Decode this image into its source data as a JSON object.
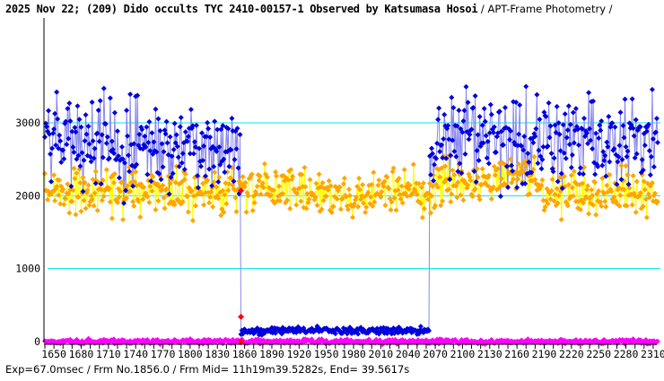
{
  "title": {
    "bold_text": "2025 Nov 22; (209) Dido occults TYC 2410-00157-1 Observed by Katsumasa Hosoi",
    "normal_text": " / APT-Frame Photometry /"
  },
  "footer": {
    "text": "Exp=67.0msec / Frm No.1856.0 / Frm Mid= 11h19m39.5282s,  End= 39.5617s"
  },
  "colors": {
    "target_marker": "#0000dd",
    "target_line": "#8888ee",
    "comparison_marker": "#ffa500",
    "comparison_line": "#ffff00",
    "background_marker": "#ff00ff",
    "event_marker": "#ff0000",
    "gridline": "#00e5ee",
    "axis": "#000000"
  },
  "chart_data": {
    "type": "scatter",
    "title": "2025 Nov 22; (209) Dido occults TYC 2410-00157-1 Observed by Katsumasa Hosoi / APT-Frame Photometry /",
    "xlabel": "",
    "ylabel": "",
    "xlim": [
      1639,
      2318
    ],
    "ylim": [
      -30,
      4400
    ],
    "x_ticks": [
      1650,
      1680,
      1710,
      1740,
      1770,
      1800,
      1830,
      1860,
      1890,
      1920,
      1950,
      1980,
      2010,
      2040,
      2070,
      2100,
      2130,
      2160,
      2190,
      2220,
      2250,
      2280,
      2310
    ],
    "y_ticks": [
      0,
      1000,
      2000,
      3000
    ],
    "gridlines_y": [
      1000,
      2000,
      3000
    ],
    "grid": true,
    "series": [
      {
        "name": "target",
        "description": "blue markers with lavender connecting line",
        "baseline": 2750,
        "scatter": 500,
        "occultation_level": 150,
        "occultation_start_frame": 1856,
        "occultation_end_frame": 2064
      },
      {
        "name": "comparison",
        "description": "orange markers with yellow connecting line",
        "baseline": 2050,
        "scatter": 250
      },
      {
        "name": "background",
        "description": "magenta markers near zero",
        "baseline": 0,
        "scatter": 25
      }
    ],
    "event_markers": [
      {
        "frame": 1856,
        "value": 2070
      },
      {
        "frame": 1856,
        "value": 340
      },
      {
        "frame": 1856,
        "value": 0
      }
    ],
    "frame_range": [
      1640,
      2315
    ]
  }
}
